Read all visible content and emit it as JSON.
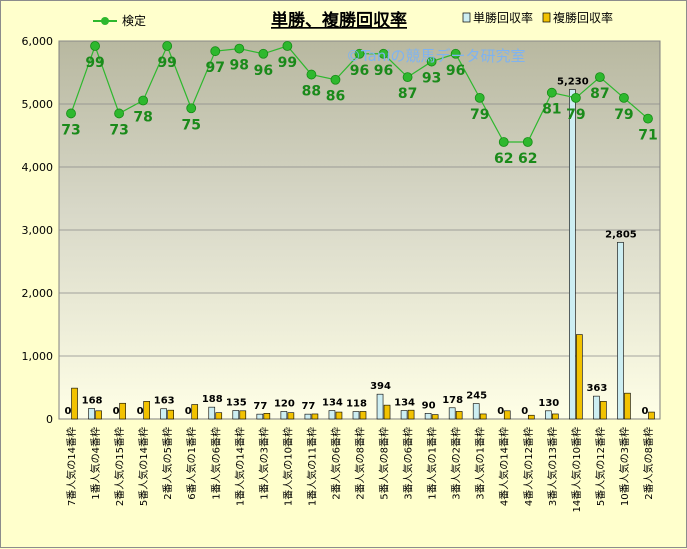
{
  "chart_data": {
    "type": "bar",
    "title": "単勝、複勝回収率",
    "watermark": "©Taniの競馬データ研究室",
    "categories": [
      "7番人気の14番枠",
      "1番人気の4番枠",
      "2番人気の15番枠",
      "5番人気の14番枠",
      "2番人気の5番枠",
      "6番人気の1番枠",
      "1番人気の6番枠",
      "1番人気の14番枠",
      "1番人気の3番枠",
      "1番人気の10番枠",
      "1番人気の11番枠",
      "2番人気の6番枠",
      "2番人気の8番枠",
      "5番人気の8番枠",
      "3番人気の6番枠",
      "1番人気の1番枠",
      "3番人気の2番枠",
      "3番人気の1番枠",
      "4番人気の14番枠",
      "4番人気の12番枠",
      "3番人気の13番枠",
      "14番人気の10番枠",
      "5番人気の12番枠",
      "10番人気の3番枠",
      "2番人気の8番枠"
    ],
    "ylim": [
      0,
      6000
    ],
    "yticks": [
      "0",
      "1,000",
      "2,000",
      "3,000",
      "4,000",
      "5,000",
      "6,000"
    ],
    "series": [
      {
        "name": "単勝回収率",
        "color": "#cdeef2",
        "values": [
          0,
          168,
          0,
          0,
          163,
          0,
          188,
          135,
          77,
          120,
          77,
          134,
          118,
          394,
          134,
          90,
          178,
          245,
          0,
          0,
          130,
          5230,
          363,
          2805,
          0
        ],
        "labels": [
          "0",
          "168",
          "0",
          "0",
          "163",
          "0",
          "188",
          "135",
          "77",
          "120",
          "77",
          "134",
          "118",
          "394",
          "134",
          "90",
          "178",
          "245",
          "0",
          "0",
          "130",
          "5,230",
          "363",
          "2,805",
          "0"
        ]
      },
      {
        "name": "複勝回収率",
        "color": "#f2c200",
        "values": [
          490,
          130,
          250,
          280,
          140,
          230,
          100,
          130,
          90,
          100,
          80,
          110,
          120,
          220,
          140,
          70,
          120,
          80,
          130,
          60,
          80,
          1340,
          280,
          410,
          110
        ]
      },
      {
        "name": "検定",
        "color": "#2eb82e",
        "values": [
          73,
          99,
          73,
          78,
          99,
          75,
          97,
          98,
          96,
          99,
          88,
          86,
          96,
          96,
          87,
          93,
          96,
          79,
          62,
          62,
          81,
          79,
          87,
          79,
          71
        ]
      }
    ]
  }
}
